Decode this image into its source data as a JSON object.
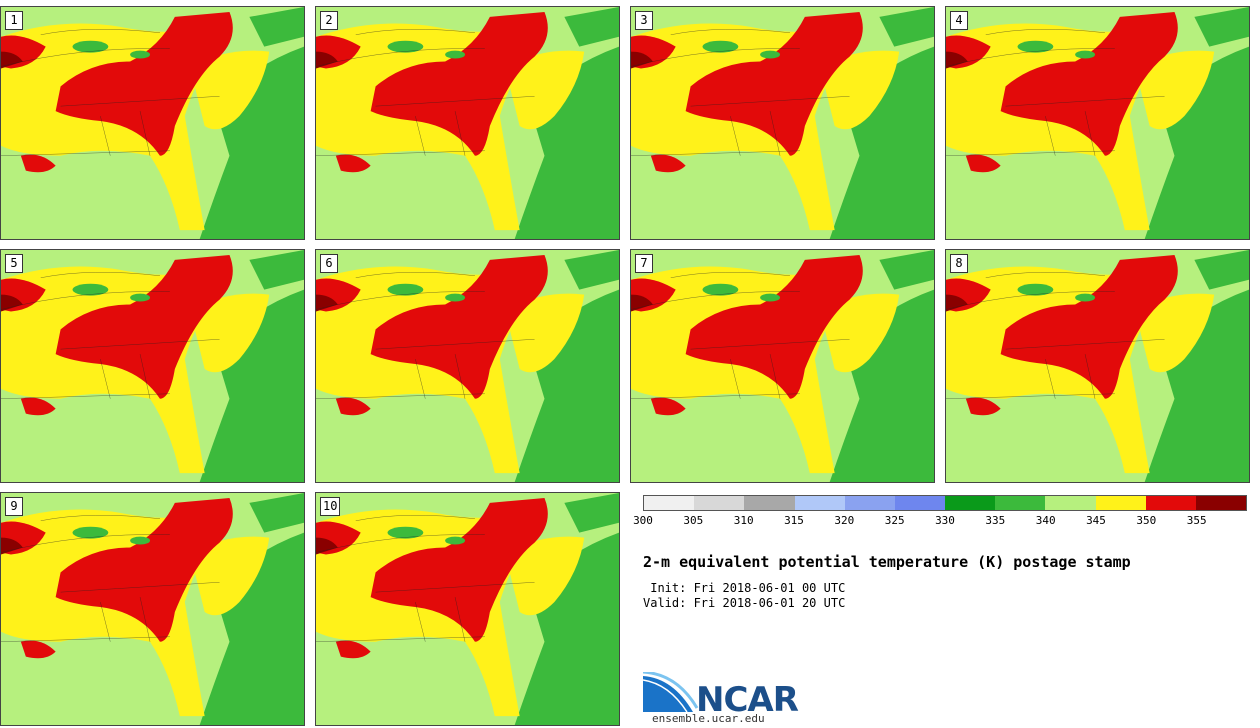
{
  "panels": [
    {
      "label": "1"
    },
    {
      "label": "2"
    },
    {
      "label": "3"
    },
    {
      "label": "4"
    },
    {
      "label": "5"
    },
    {
      "label": "6"
    },
    {
      "label": "7"
    },
    {
      "label": "8"
    },
    {
      "label": "9"
    },
    {
      "label": "10"
    }
  ],
  "legend": {
    "ticks": [
      "300",
      "305",
      "310",
      "315",
      "320",
      "325",
      "330",
      "335",
      "340",
      "345",
      "350",
      "355"
    ],
    "colors": [
      "#f0f0f0",
      "#d8d8d8",
      "#a8a8a8",
      "#b0c8f8",
      "#8aa2f0",
      "#6e86ee",
      "#0a9a1a",
      "#3cba3c",
      "#b6f07e",
      "#fff21a",
      "#e20a0a",
      "#8a0000"
    ]
  },
  "title": "2-m equivalent potential temperature (K) postage stamp",
  "init": " Init: Fri 2018-06-01 00 UTC",
  "valid": "Valid: Fri 2018-06-01 20 UTC",
  "logo": {
    "name": "NCAR",
    "url": "ensemble.ucar.edu"
  }
}
